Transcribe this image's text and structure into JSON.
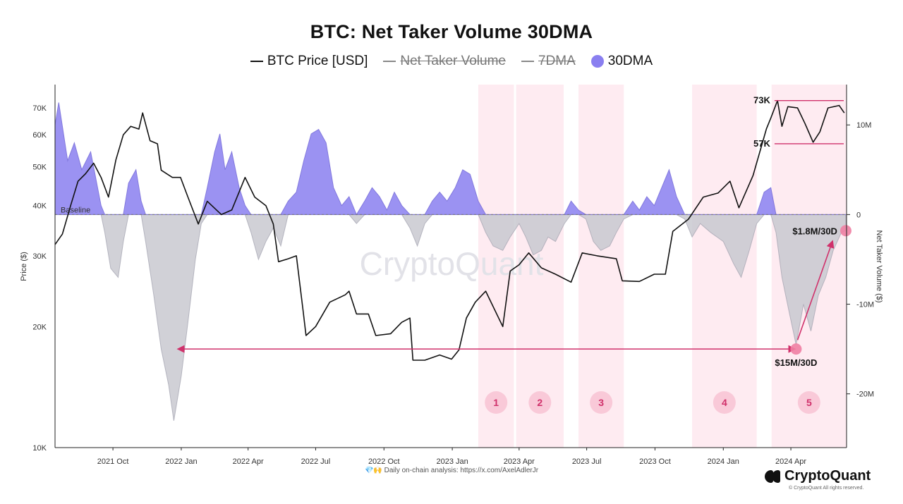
{
  "header": {
    "title": "BTC: Net Taker Volume 30DMA"
  },
  "legend": [
    {
      "label": "BTC Price [USD]",
      "kind": "line",
      "color": "#111111",
      "struck": false
    },
    {
      "label": "Net Taker Volume",
      "kind": "line",
      "color": "#888888",
      "struck": true
    },
    {
      "label": "7DMA",
      "kind": "line",
      "color": "#888888",
      "struck": true
    },
    {
      "label": "30DMA",
      "kind": "dot",
      "color": "#8a7ff0",
      "struck": false
    }
  ],
  "footer": {
    "note": "💎🙌 Daily on-chain analysis: https://x.com/AxelAdlerJr",
    "brand": "CryptoQuant",
    "copyright": "© CryptoQuant All rights reserved."
  },
  "watermark": "CryptoQuant",
  "colors": {
    "positive_fill": "#8a7ff0",
    "negative_fill": "#c9c9d1",
    "price_line": "#111111",
    "zone_fill": "#fde4ec",
    "accent": "#d0316b"
  },
  "chart_data": {
    "type": "line",
    "title": "BTC: Net Taker Volume 30DMA",
    "y_left": {
      "label": "Price ($)",
      "scale": "log",
      "range": [
        10000,
        80000
      ],
      "ticks": [
        {
          "v": 10000,
          "label": "10K"
        },
        {
          "v": 20000,
          "label": "20K"
        },
        {
          "v": 30000,
          "label": "30K"
        },
        {
          "v": 40000,
          "label": "40K"
        },
        {
          "v": 50000,
          "label": "50K"
        },
        {
          "v": 60000,
          "label": "60K"
        },
        {
          "v": 70000,
          "label": "70K"
        }
      ]
    },
    "y_right": {
      "label": "Net Taker Volume ($)",
      "scale": "linear",
      "range": [
        -26000000,
        14500000
      ],
      "ticks": [
        {
          "v": 10000000,
          "label": "10M"
        },
        {
          "v": 0,
          "label": "0"
        },
        {
          "v": -10000000,
          "label": "-10M"
        },
        {
          "v": -20000000,
          "label": "-20M"
        }
      ]
    },
    "x_axis": {
      "range": [
        "2021-07-15",
        "2024-06-15"
      ],
      "ticks": [
        {
          "date": "2021-10-01",
          "label": "2021 Oct"
        },
        {
          "date": "2022-01-01",
          "label": "2022 Jan"
        },
        {
          "date": "2022-04-01",
          "label": "2022 Apr"
        },
        {
          "date": "2022-07-01",
          "label": "2022 Jul"
        },
        {
          "date": "2022-10-01",
          "label": "2022 Oct"
        },
        {
          "date": "2023-01-01",
          "label": "2023 Jan"
        },
        {
          "date": "2023-04-01",
          "label": "2023 Apr"
        },
        {
          "date": "2023-07-01",
          "label": "2023 Jul"
        },
        {
          "date": "2023-10-01",
          "label": "2023 Oct"
        },
        {
          "date": "2024-01-01",
          "label": "2024 Jan"
        },
        {
          "date": "2024-04-01",
          "label": "2024 Apr"
        }
      ]
    },
    "baseline_label": "Baseline",
    "series": [
      {
        "name": "BTC Price [USD]",
        "axis": "left",
        "points": [
          [
            "2021-07-15",
            32000
          ],
          [
            "2021-07-25",
            34000
          ],
          [
            "2021-08-05",
            40000
          ],
          [
            "2021-08-15",
            46000
          ],
          [
            "2021-08-25",
            48000
          ],
          [
            "2021-09-05",
            51000
          ],
          [
            "2021-09-15",
            47000
          ],
          [
            "2021-09-25",
            42000
          ],
          [
            "2021-10-05",
            52000
          ],
          [
            "2021-10-15",
            60000
          ],
          [
            "2021-10-25",
            63000
          ],
          [
            "2021-11-05",
            62000
          ],
          [
            "2021-11-10",
            68000
          ],
          [
            "2021-11-20",
            58000
          ],
          [
            "2021-11-30",
            57000
          ],
          [
            "2021-12-05",
            49000
          ],
          [
            "2021-12-20",
            47000
          ],
          [
            "2021-12-31",
            47000
          ],
          [
            "2022-01-10",
            42000
          ],
          [
            "2022-01-24",
            36000
          ],
          [
            "2022-02-05",
            41000
          ],
          [
            "2022-02-24",
            38000
          ],
          [
            "2022-03-10",
            39000
          ],
          [
            "2022-03-28",
            47000
          ],
          [
            "2022-04-10",
            42000
          ],
          [
            "2022-04-25",
            40000
          ],
          [
            "2022-05-05",
            36000
          ],
          [
            "2022-05-12",
            29000
          ],
          [
            "2022-05-25",
            29500
          ],
          [
            "2022-06-05",
            30000
          ],
          [
            "2022-06-14",
            22000
          ],
          [
            "2022-06-18",
            19000
          ],
          [
            "2022-07-01",
            20000
          ],
          [
            "2022-07-20",
            23000
          ],
          [
            "2022-08-10",
            24000
          ],
          [
            "2022-08-15",
            24500
          ],
          [
            "2022-08-25",
            21500
          ],
          [
            "2022-09-10",
            21500
          ],
          [
            "2022-09-20",
            19000
          ],
          [
            "2022-10-10",
            19200
          ],
          [
            "2022-10-25",
            20500
          ],
          [
            "2022-11-05",
            21000
          ],
          [
            "2022-11-09",
            16500
          ],
          [
            "2022-11-25",
            16500
          ],
          [
            "2022-12-15",
            17000
          ],
          [
            "2022-12-31",
            16600
          ],
          [
            "2023-01-10",
            17500
          ],
          [
            "2023-01-20",
            21000
          ],
          [
            "2023-02-01",
            23000
          ],
          [
            "2023-02-15",
            24500
          ],
          [
            "2023-03-10",
            20000
          ],
          [
            "2023-03-20",
            27500
          ],
          [
            "2023-04-01",
            28500
          ],
          [
            "2023-04-14",
            30500
          ],
          [
            "2023-05-01",
            28000
          ],
          [
            "2023-05-20",
            27000
          ],
          [
            "2023-06-10",
            25800
          ],
          [
            "2023-06-25",
            30500
          ],
          [
            "2023-07-15",
            30000
          ],
          [
            "2023-08-10",
            29500
          ],
          [
            "2023-08-18",
            26000
          ],
          [
            "2023-09-10",
            25900
          ],
          [
            "2023-09-30",
            27000
          ],
          [
            "2023-10-15",
            27000
          ],
          [
            "2023-10-25",
            34500
          ],
          [
            "2023-11-15",
            37000
          ],
          [
            "2023-12-05",
            42000
          ],
          [
            "2023-12-25",
            43000
          ],
          [
            "2024-01-10",
            46000
          ],
          [
            "2024-01-22",
            39500
          ],
          [
            "2024-02-10",
            47500
          ],
          [
            "2024-02-28",
            62000
          ],
          [
            "2024-03-05",
            66000
          ],
          [
            "2024-03-14",
            73000
          ],
          [
            "2024-03-20",
            63000
          ],
          [
            "2024-03-28",
            70500
          ],
          [
            "2024-04-10",
            70000
          ],
          [
            "2024-04-20",
            64000
          ],
          [
            "2024-05-01",
            57500
          ],
          [
            "2024-05-10",
            61000
          ],
          [
            "2024-05-21",
            70000
          ],
          [
            "2024-06-05",
            71000
          ],
          [
            "2024-06-12",
            68000
          ]
        ]
      },
      {
        "name": "30DMA",
        "axis": "right",
        "points": [
          [
            "2021-07-15",
            10000000
          ],
          [
            "2021-07-20",
            12500000
          ],
          [
            "2021-08-01",
            6000000
          ],
          [
            "2021-08-10",
            8000000
          ],
          [
            "2021-08-20",
            5000000
          ],
          [
            "2021-09-01",
            7000000
          ],
          [
            "2021-09-08",
            4000000
          ],
          [
            "2021-09-15",
            1000000
          ],
          [
            "2021-09-20",
            -2000000
          ],
          [
            "2021-09-28",
            -6000000
          ],
          [
            "2021-10-08",
            -7000000
          ],
          [
            "2021-10-15",
            -3000000
          ],
          [
            "2021-10-22",
            3500000
          ],
          [
            "2021-11-01",
            5000000
          ],
          [
            "2021-11-08",
            1500000
          ],
          [
            "2021-11-14",
            -3000000
          ],
          [
            "2021-11-25",
            -9000000
          ],
          [
            "2021-12-05",
            -15000000
          ],
          [
            "2021-12-15",
            -19000000
          ],
          [
            "2021-12-22",
            -23000000
          ],
          [
            "2022-01-01",
            -18000000
          ],
          [
            "2022-01-10",
            -12000000
          ],
          [
            "2022-01-20",
            -5000000
          ],
          [
            "2022-01-28",
            -1000000
          ],
          [
            "2022-02-05",
            3000000
          ],
          [
            "2022-02-15",
            7000000
          ],
          [
            "2022-02-22",
            9000000
          ],
          [
            "2022-03-01",
            5000000
          ],
          [
            "2022-03-10",
            7000000
          ],
          [
            "2022-03-20",
            3000000
          ],
          [
            "2022-03-28",
            1000000
          ],
          [
            "2022-04-05",
            -2000000
          ],
          [
            "2022-04-15",
            -5000000
          ],
          [
            "2022-04-25",
            -3000000
          ],
          [
            "2022-05-05",
            -1500000
          ],
          [
            "2022-05-15",
            -3500000
          ],
          [
            "2022-05-25",
            1500000
          ],
          [
            "2022-06-05",
            2500000
          ],
          [
            "2022-06-15",
            6000000
          ],
          [
            "2022-06-25",
            9000000
          ],
          [
            "2022-07-05",
            9500000
          ],
          [
            "2022-07-15",
            8000000
          ],
          [
            "2022-07-25",
            3000000
          ],
          [
            "2022-08-05",
            1000000
          ],
          [
            "2022-08-15",
            2000000
          ],
          [
            "2022-08-25",
            -1000000
          ],
          [
            "2022-09-05",
            1500000
          ],
          [
            "2022-09-15",
            3000000
          ],
          [
            "2022-09-25",
            2000000
          ],
          [
            "2022-10-05",
            500000
          ],
          [
            "2022-10-15",
            2500000
          ],
          [
            "2022-10-25",
            1000000
          ],
          [
            "2022-11-05",
            -1500000
          ],
          [
            "2022-11-15",
            -3500000
          ],
          [
            "2022-11-25",
            -1000000
          ],
          [
            "2022-12-05",
            1500000
          ],
          [
            "2022-12-15",
            2500000
          ],
          [
            "2022-12-25",
            1500000
          ],
          [
            "2023-01-05",
            3000000
          ],
          [
            "2023-01-15",
            5000000
          ],
          [
            "2023-01-25",
            4500000
          ],
          [
            "2023-02-05",
            1500000
          ],
          [
            "2023-02-15",
            -2000000
          ],
          [
            "2023-02-25",
            -3500000
          ],
          [
            "2023-03-10",
            -4000000
          ],
          [
            "2023-03-20",
            -2500000
          ],
          [
            "2023-04-01",
            -1000000
          ],
          [
            "2023-04-10",
            -2500000
          ],
          [
            "2023-04-20",
            -4500000
          ],
          [
            "2023-05-01",
            -4000000
          ],
          [
            "2023-05-10",
            -2500000
          ],
          [
            "2023-05-20",
            -3000000
          ],
          [
            "2023-06-01",
            -1000000
          ],
          [
            "2023-06-10",
            1500000
          ],
          [
            "2023-06-20",
            500000
          ],
          [
            "2023-06-30",
            -500000
          ],
          [
            "2023-07-10",
            -3000000
          ],
          [
            "2023-07-20",
            -4000000
          ],
          [
            "2023-08-01",
            -3500000
          ],
          [
            "2023-08-10",
            -2000000
          ],
          [
            "2023-08-20",
            -500000
          ],
          [
            "2023-09-01",
            1500000
          ],
          [
            "2023-09-10",
            500000
          ],
          [
            "2023-09-20",
            2000000
          ],
          [
            "2023-09-30",
            1000000
          ],
          [
            "2023-10-10",
            3000000
          ],
          [
            "2023-10-20",
            5000000
          ],
          [
            "2023-10-30",
            2000000
          ],
          [
            "2023-11-10",
            -500000
          ],
          [
            "2023-11-20",
            -2500000
          ],
          [
            "2023-12-01",
            -1000000
          ],
          [
            "2023-12-15",
            -2000000
          ],
          [
            "2024-01-01",
            -3000000
          ],
          [
            "2024-01-15",
            -5500000
          ],
          [
            "2024-01-25",
            -7000000
          ],
          [
            "2024-02-05",
            -4000000
          ],
          [
            "2024-02-15",
            -1000000
          ],
          [
            "2024-02-25",
            2500000
          ],
          [
            "2024-03-05",
            3000000
          ],
          [
            "2024-03-12",
            -2000000
          ],
          [
            "2024-03-20",
            -7000000
          ],
          [
            "2024-03-30",
            -11000000
          ],
          [
            "2024-04-08",
            -14500000
          ],
          [
            "2024-04-18",
            -10000000
          ],
          [
            "2024-04-28",
            -13000000
          ],
          [
            "2024-05-08",
            -9000000
          ],
          [
            "2024-05-18",
            -7000000
          ],
          [
            "2024-05-28",
            -4000000
          ],
          [
            "2024-06-08",
            -2000000
          ],
          [
            "2024-06-14",
            -1800000
          ]
        ]
      }
    ],
    "zones": [
      {
        "label": "1",
        "start": "2023-02-05",
        "end": "2023-03-25"
      },
      {
        "label": "2",
        "start": "2023-03-28",
        "end": "2023-05-31"
      },
      {
        "label": "3",
        "start": "2023-06-20",
        "end": "2023-08-20"
      },
      {
        "label": "4",
        "start": "2023-11-20",
        "end": "2024-02-15"
      },
      {
        "label": "5",
        "start": "2024-03-06",
        "end": "2024-06-15"
      }
    ],
    "hlines": [
      {
        "label": "73K",
        "value": 73000,
        "axis": "left",
        "start": "2024-03-10",
        "end": "2024-06-15"
      },
      {
        "label": "57K",
        "value": 57000,
        "axis": "left",
        "start": "2024-03-10",
        "end": "2024-06-15"
      }
    ],
    "annotations": [
      {
        "label": "$15M/30D",
        "date": "2024-04-08",
        "value": -15000000,
        "axis": "right"
      },
      {
        "label": "$1.8M/30D",
        "date": "2024-06-14",
        "value": -1800000,
        "axis": "right"
      }
    ],
    "arrows": [
      {
        "from": [
          "2021-12-28",
          -15000000
        ],
        "to": [
          "2024-04-06",
          -15000000
        ],
        "double": true
      },
      {
        "from": [
          "2024-04-10",
          -14000000
        ],
        "to": [
          "2024-05-27",
          -3000000
        ],
        "double": false
      }
    ]
  }
}
